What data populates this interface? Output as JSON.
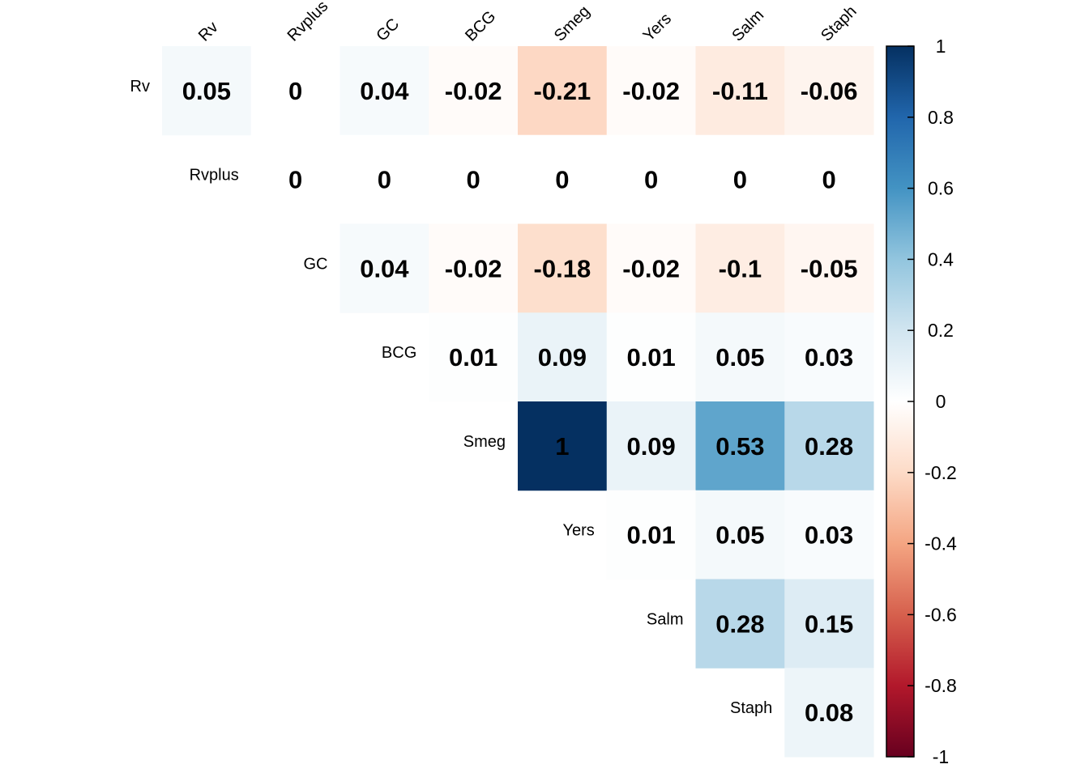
{
  "chart_data": {
    "type": "heatmap",
    "variables": [
      "Rv",
      "Rvplus",
      "GC",
      "BCG",
      "Smeg",
      "Yers",
      "Salm",
      "Staph"
    ],
    "layout": "upper-triangle",
    "cells": [
      {
        "row": "Rv",
        "col": "Rv",
        "value": 0.05,
        "label": "0.05"
      },
      {
        "row": "Rv",
        "col": "Rvplus",
        "value": 0,
        "label": "0"
      },
      {
        "row": "Rv",
        "col": "GC",
        "value": 0.04,
        "label": "0.04"
      },
      {
        "row": "Rv",
        "col": "BCG",
        "value": -0.02,
        "label": "-0.02"
      },
      {
        "row": "Rv",
        "col": "Smeg",
        "value": -0.21,
        "label": "-0.21"
      },
      {
        "row": "Rv",
        "col": "Yers",
        "value": -0.02,
        "label": "-0.02"
      },
      {
        "row": "Rv",
        "col": "Salm",
        "value": -0.11,
        "label": "-0.11"
      },
      {
        "row": "Rv",
        "col": "Staph",
        "value": -0.06,
        "label": "-0.06"
      },
      {
        "row": "Rvplus",
        "col": "Rvplus",
        "value": 0,
        "label": "0"
      },
      {
        "row": "Rvplus",
        "col": "GC",
        "value": 0,
        "label": "0"
      },
      {
        "row": "Rvplus",
        "col": "BCG",
        "value": 0,
        "label": "0"
      },
      {
        "row": "Rvplus",
        "col": "Smeg",
        "value": 0,
        "label": "0"
      },
      {
        "row": "Rvplus",
        "col": "Yers",
        "value": 0,
        "label": "0"
      },
      {
        "row": "Rvplus",
        "col": "Salm",
        "value": 0,
        "label": "0"
      },
      {
        "row": "Rvplus",
        "col": "Staph",
        "value": 0,
        "label": "0"
      },
      {
        "row": "GC",
        "col": "GC",
        "value": 0.04,
        "label": "0.04"
      },
      {
        "row": "GC",
        "col": "BCG",
        "value": -0.02,
        "label": "-0.02"
      },
      {
        "row": "GC",
        "col": "Smeg",
        "value": -0.18,
        "label": "-0.18"
      },
      {
        "row": "GC",
        "col": "Yers",
        "value": -0.02,
        "label": "-0.02"
      },
      {
        "row": "GC",
        "col": "Salm",
        "value": -0.1,
        "label": "-0.1"
      },
      {
        "row": "GC",
        "col": "Staph",
        "value": -0.05,
        "label": "-0.05"
      },
      {
        "row": "BCG",
        "col": "BCG",
        "value": 0.01,
        "label": "0.01"
      },
      {
        "row": "BCG",
        "col": "Smeg",
        "value": 0.09,
        "label": "0.09"
      },
      {
        "row": "BCG",
        "col": "Yers",
        "value": 0.01,
        "label": "0.01"
      },
      {
        "row": "BCG",
        "col": "Salm",
        "value": 0.05,
        "label": "0.05"
      },
      {
        "row": "BCG",
        "col": "Staph",
        "value": 0.03,
        "label": "0.03"
      },
      {
        "row": "Smeg",
        "col": "Smeg",
        "value": 1,
        "label": "1"
      },
      {
        "row": "Smeg",
        "col": "Yers",
        "value": 0.09,
        "label": "0.09"
      },
      {
        "row": "Smeg",
        "col": "Salm",
        "value": 0.53,
        "label": "0.53"
      },
      {
        "row": "Smeg",
        "col": "Staph",
        "value": 0.28,
        "label": "0.28"
      },
      {
        "row": "Yers",
        "col": "Yers",
        "value": 0.01,
        "label": "0.01"
      },
      {
        "row": "Yers",
        "col": "Salm",
        "value": 0.05,
        "label": "0.05"
      },
      {
        "row": "Yers",
        "col": "Staph",
        "value": 0.03,
        "label": "0.03"
      },
      {
        "row": "Salm",
        "col": "Salm",
        "value": 0.28,
        "label": "0.28"
      },
      {
        "row": "Salm",
        "col": "Staph",
        "value": 0.15,
        "label": "0.15"
      },
      {
        "row": "Staph",
        "col": "Staph",
        "value": 0.08,
        "label": "0.08"
      }
    ],
    "color_scale": {
      "range": [
        -1,
        1
      ],
      "ticks": [
        "1",
        "0.8",
        "0.6",
        "0.4",
        "0.2",
        "0",
        "-0.2",
        "-0.4",
        "-0.6",
        "-0.8",
        "-1"
      ],
      "tick_values": [
        1,
        0.8,
        0.6,
        0.4,
        0.2,
        0,
        -0.2,
        -0.4,
        -0.6,
        -0.8,
        -1
      ],
      "colors": [
        "#67001F",
        "#B2182B",
        "#D6604D",
        "#F4A582",
        "#FDDBC7",
        "#FFFFFF",
        "#D1E5F0",
        "#92C5DE",
        "#4393C3",
        "#2166AC",
        "#053061"
      ],
      "legend_placement": "right"
    },
    "title": "",
    "xlabel": "",
    "ylabel": "",
    "grid": false
  }
}
